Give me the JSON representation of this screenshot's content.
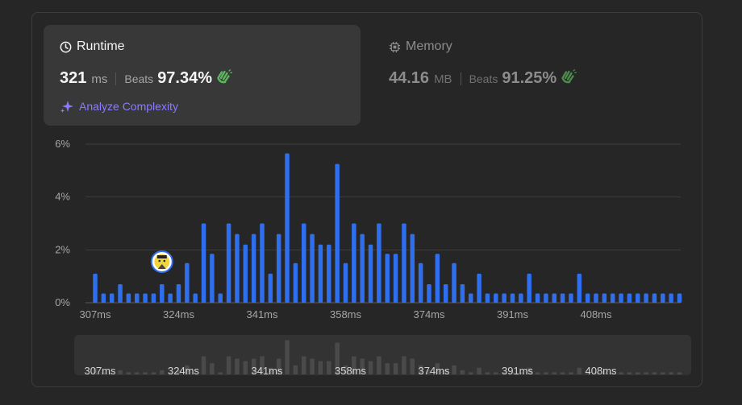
{
  "runtime": {
    "title": "Runtime",
    "value": "321",
    "unit": "ms",
    "beats_label": "Beats",
    "beats_pct": "97.34%"
  },
  "analyze": {
    "label": "Analyze Complexity"
  },
  "memory": {
    "title": "Memory",
    "value": "44.16",
    "unit": "MB",
    "beats_label": "Beats",
    "beats_pct": "91.25%"
  },
  "colors": {
    "bar": "#2f6fed",
    "mini_bar": "#4a4a4a",
    "accent_purple": "#8a7bff",
    "clap_green": "#5cb85c"
  },
  "icons": {
    "runtime": "clock-icon",
    "memory": "chip-icon",
    "analyze": "sparkle-icon",
    "beats": "clapping-hands-icon",
    "user_marker": "user-avatar-icon"
  },
  "chart_data": {
    "type": "bar",
    "ylim": [
      0,
      6
    ],
    "y_ticks": [
      "0%",
      "2%",
      "4%",
      "6%"
    ],
    "x_ticks": [
      "307ms",
      "324ms",
      "341ms",
      "358ms",
      "374ms",
      "391ms",
      "408ms"
    ],
    "grid": true,
    "user_bar_index": 8,
    "values": [
      1.1,
      0.35,
      0.35,
      0.7,
      0.35,
      0.35,
      0.35,
      0.35,
      0.7,
      0.35,
      0.7,
      1.5,
      0.35,
      3.0,
      1.85,
      0.35,
      3.0,
      2.6,
      2.2,
      2.6,
      3.0,
      1.1,
      2.6,
      5.65,
      1.5,
      3.0,
      2.6,
      2.2,
      2.2,
      5.25,
      1.5,
      3.0,
      2.6,
      2.2,
      3.0,
      1.85,
      1.85,
      3.0,
      2.6,
      1.5,
      0.7,
      1.85,
      0.7,
      1.5,
      0.7,
      0.35,
      1.1,
      0.35,
      0.35,
      0.35,
      0.35,
      0.35,
      1.1,
      0.35,
      0.35,
      0.35,
      0.35,
      0.35,
      1.1,
      0.35,
      0.35,
      0.35,
      0.35,
      0.35,
      0.35,
      0.35,
      0.35,
      0.35,
      0.35,
      0.35,
      0.35
    ]
  }
}
